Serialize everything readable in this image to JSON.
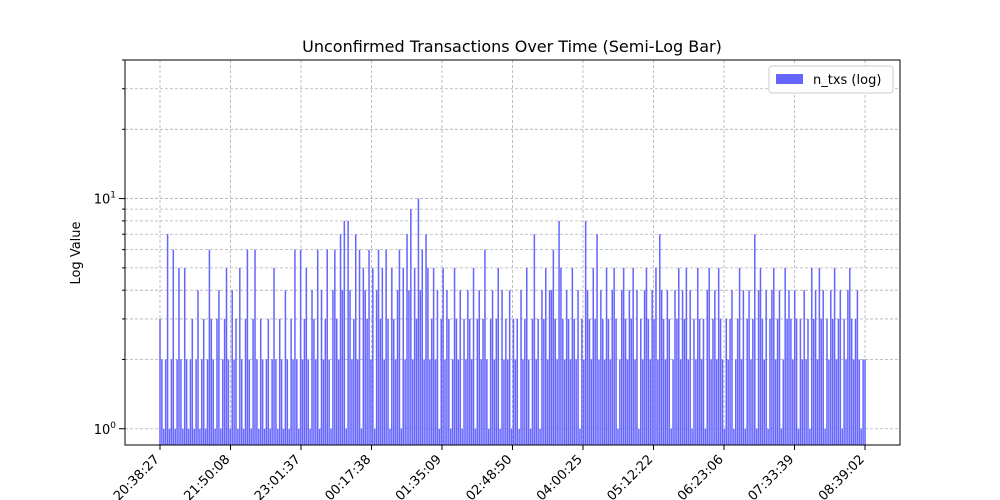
{
  "chart_data": {
    "type": "bar",
    "title": "Unconfirmed Transactions Over Time (Semi-Log Bar)",
    "xlabel": "",
    "ylabel": "Log Value",
    "yscale": "log",
    "ylim": [
      0.85,
      40
    ],
    "grid": true,
    "legend": {
      "placement": "top-right",
      "entries": [
        "n_txs (log)"
      ]
    },
    "series_color": "#6666ff",
    "x_tick_labels": [
      "20:38:27",
      "21:50:08",
      "23:01:37",
      "00:17:38",
      "01:35:09",
      "02:48:50",
      "04:00:25",
      "05:12:22",
      "06:23:06",
      "07:33:39",
      "08:39:02"
    ],
    "y_tick_labels": [
      "10^0",
      "10^1"
    ],
    "series": [
      {
        "name": "n_txs (log)",
        "values": [
          3,
          2,
          1,
          2,
          7,
          1,
          2,
          6,
          1,
          2,
          5,
          2,
          1,
          5,
          2,
          1,
          2,
          3,
          1,
          2,
          4,
          1,
          2,
          3,
          1,
          2,
          6,
          3,
          2,
          1,
          3,
          4,
          1,
          2,
          3,
          5,
          2,
          1,
          4,
          2,
          3,
          1,
          5,
          2,
          1,
          3,
          6,
          2,
          1,
          3,
          6,
          2,
          1,
          3,
          2,
          1,
          2,
          3,
          1,
          2,
          5,
          2,
          1,
          3,
          2,
          1,
          4,
          2,
          1,
          3,
          2,
          6,
          2,
          1,
          6,
          2,
          3,
          5,
          2,
          1,
          4,
          3,
          2,
          6,
          1,
          4,
          2,
          3,
          6,
          2,
          1,
          4,
          6,
          3,
          2,
          7,
          4,
          8,
          1,
          8,
          4,
          2,
          3,
          7,
          2,
          6,
          1,
          5,
          4,
          3,
          6,
          2,
          5,
          1,
          4,
          6,
          3,
          5,
          2,
          6,
          3,
          1,
          5,
          3,
          2,
          4,
          6,
          1,
          5,
          2,
          7,
          4,
          9,
          2,
          5,
          3,
          10,
          4,
          6,
          2,
          7,
          5,
          2,
          3,
          5,
          2,
          4,
          1,
          3,
          5,
          2,
          4,
          3,
          1,
          2,
          5,
          3,
          2,
          4,
          1,
          3,
          2,
          4,
          3,
          2,
          5,
          1,
          3,
          4,
          2,
          3,
          6,
          2,
          1,
          3,
          4,
          2,
          3,
          5,
          1,
          4,
          2,
          3,
          2,
          4,
          1,
          3,
          2,
          3,
          1,
          4,
          2,
          3,
          5,
          2,
          1,
          3,
          7,
          2,
          3,
          1,
          4,
          3,
          5,
          2,
          4,
          4,
          6,
          3,
          2,
          8,
          5,
          3,
          2,
          4,
          3,
          2,
          5,
          3,
          2,
          4,
          1,
          3,
          2,
          8,
          4,
          3,
          2,
          5,
          3,
          7,
          2,
          4,
          3,
          2,
          5,
          3,
          2,
          4,
          5,
          3,
          1,
          2,
          4,
          5,
          3,
          2,
          4,
          3,
          5,
          2,
          4,
          1,
          3,
          2,
          4,
          5,
          3,
          2,
          4,
          3,
          5,
          2,
          7,
          4,
          3,
          2,
          4,
          3,
          1,
          2,
          4,
          3,
          5,
          2,
          4,
          3,
          5,
          2,
          4,
          1,
          3,
          2,
          5,
          3,
          2,
          3,
          1,
          4,
          5,
          2,
          3,
          4,
          2,
          5,
          3,
          2,
          1,
          3,
          2,
          3,
          4,
          1,
          2,
          3,
          5,
          2,
          4,
          1,
          3,
          4,
          2,
          3,
          7,
          1,
          4,
          5,
          3,
          2,
          4,
          1,
          3,
          4,
          5,
          2,
          3,
          4,
          1,
          2,
          5,
          3,
          4,
          3,
          2,
          4,
          3,
          1,
          3,
          2,
          4,
          2,
          3,
          1,
          5,
          3,
          4,
          2,
          5,
          3,
          4,
          1,
          3,
          2,
          4,
          3,
          5,
          2,
          3,
          4,
          1,
          3,
          2,
          4,
          5,
          3,
          2,
          3,
          4,
          2,
          1,
          2,
          2
        ]
      }
    ]
  }
}
